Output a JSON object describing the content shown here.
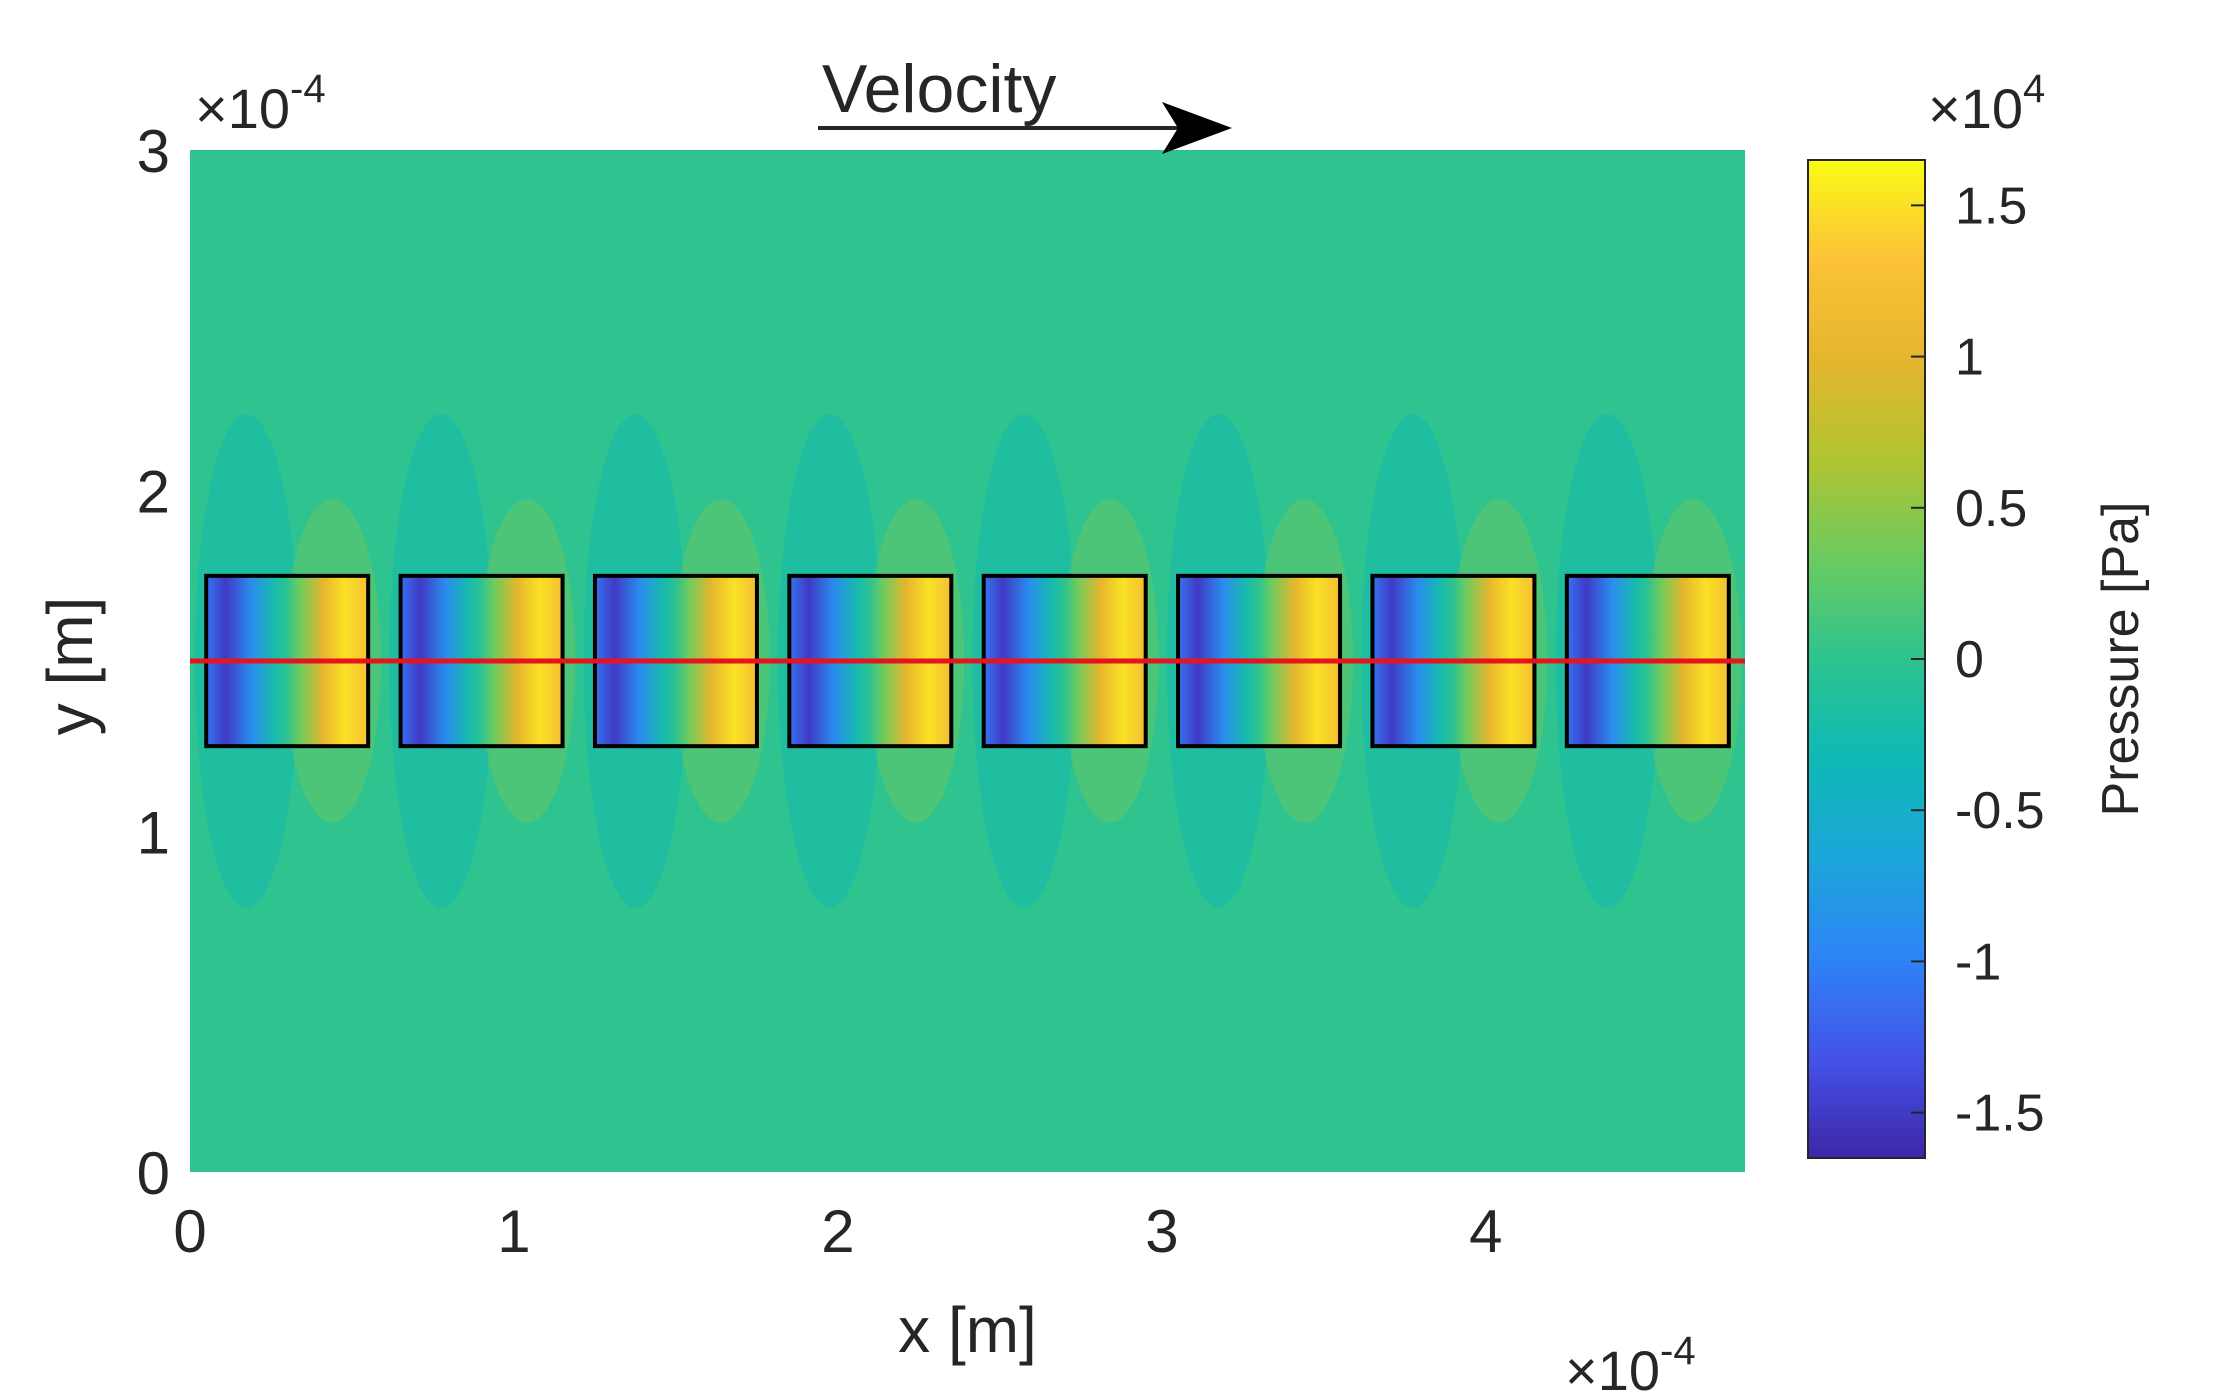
{
  "chart_data": {
    "type": "heatmap",
    "title": "Velocity",
    "xlabel": "x [m]",
    "ylabel": "y [m]",
    "x_multiplier": "×10",
    "x_multiplier_exp": "-4",
    "y_multiplier": "×10",
    "y_multiplier_exp": "-4",
    "xlim": [
      0,
      4.8
    ],
    "ylim": [
      0,
      3
    ],
    "x_ticks": [
      "0",
      "1",
      "2",
      "3",
      "4"
    ],
    "x_tick_values": [
      0,
      1,
      2,
      3,
      4
    ],
    "y_ticks": [
      "0",
      "1",
      "2",
      "3"
    ],
    "y_tick_values": [
      0,
      1,
      2,
      3
    ],
    "colorbar": {
      "label": "Pressure [Pa]",
      "multiplier": "×10",
      "multiplier_exp": "4",
      "range": [
        -1.65,
        1.65
      ],
      "ticks": [
        "-1.5",
        "-1",
        "-0.5",
        "0",
        "0.5",
        "1",
        "1.5"
      ],
      "tick_values": [
        -1.5,
        -1,
        -0.5,
        0,
        0.5,
        1,
        1.5
      ],
      "colormap": [
        "#3e26a8",
        "#4353e8",
        "#2e84f6",
        "#1ca6d9",
        "#0fb9b6",
        "#2ec38f",
        "#6bcb60",
        "#b0c431",
        "#e5b62d",
        "#fcc238",
        "#f9fb15"
      ]
    },
    "background_value": 0,
    "elements": [
      {
        "x_start": 0.05,
        "x_end": 0.55,
        "y_start": 1.25,
        "y_end": 1.75
      },
      {
        "x_start": 0.65,
        "x_end": 1.15,
        "y_start": 1.25,
        "y_end": 1.75
      },
      {
        "x_start": 1.25,
        "x_end": 1.75,
        "y_start": 1.25,
        "y_end": 1.75
      },
      {
        "x_start": 1.85,
        "x_end": 2.35,
        "y_start": 1.25,
        "y_end": 1.75
      },
      {
        "x_start": 2.45,
        "x_end": 2.95,
        "y_start": 1.25,
        "y_end": 1.75
      },
      {
        "x_start": 3.05,
        "x_end": 3.55,
        "y_start": 1.25,
        "y_end": 1.75
      },
      {
        "x_start": 3.65,
        "x_end": 4.15,
        "y_start": 1.25,
        "y_end": 1.75
      },
      {
        "x_start": 4.25,
        "x_end": 4.75,
        "y_start": 1.25,
        "y_end": 1.75
      }
    ],
    "element_pressure_min": -1.5,
    "element_pressure_max": 1.5,
    "centerline_y": 1.5,
    "centerline_color": "#e8141d",
    "element_outline_color": "#000000",
    "grid": false
  }
}
